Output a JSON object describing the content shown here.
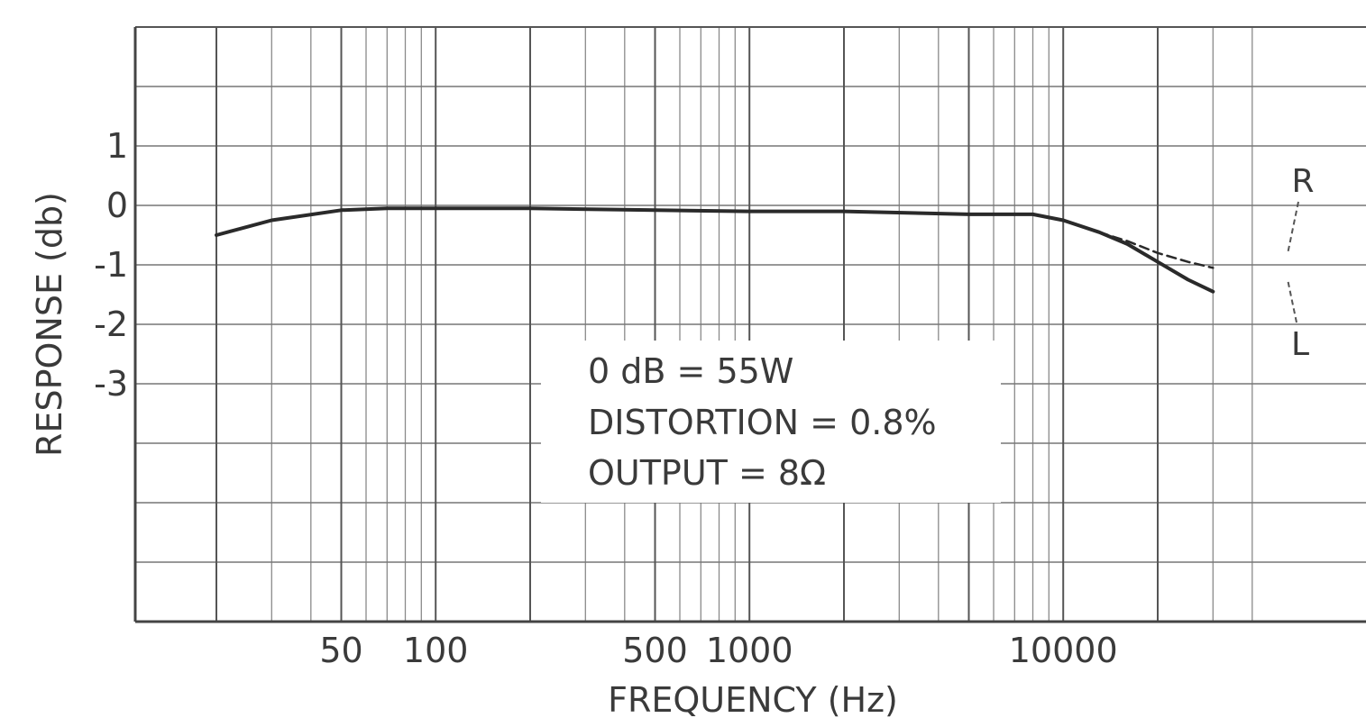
{
  "chart_data": {
    "type": "line",
    "x_scale": "log",
    "xlim": [
      20,
      40000
    ],
    "ylim": [
      -7,
      3
    ],
    "grid": true,
    "ylabel": "RESPONSE (db)",
    "xlabel": "FREQUENCY (Hz)",
    "y_ticks": [
      {
        "value": 1,
        "label": "1"
      },
      {
        "value": 0,
        "label": "0"
      },
      {
        "value": -1,
        "label": "-1"
      },
      {
        "value": -2,
        "label": "-2"
      },
      {
        "value": -3,
        "label": "-3"
      }
    ],
    "x_ticks": [
      {
        "value": 50,
        "label": "50"
      },
      {
        "value": 100,
        "label": "100"
      },
      {
        "value": 500,
        "label": "500"
      },
      {
        "value": 1000,
        "label": "1000"
      },
      {
        "value": 10000,
        "label": "10000"
      }
    ],
    "annotation": {
      "lines": [
        "0 dB = 55W",
        "DISTORTION = 0.8%",
        "OUTPUT = 8Ω"
      ]
    },
    "series": [
      {
        "name": "L",
        "style": "solid",
        "x": [
          20,
          30,
          50,
          70,
          100,
          200,
          500,
          1000,
          2000,
          5000,
          8000,
          10000,
          13000,
          16000,
          20000,
          25000,
          30000
        ],
        "y": [
          -0.5,
          -0.25,
          -0.08,
          -0.05,
          -0.05,
          -0.05,
          -0.08,
          -0.1,
          -0.1,
          -0.15,
          -0.15,
          -0.25,
          -0.45,
          -0.65,
          -0.95,
          -1.25,
          -1.45
        ]
      },
      {
        "name": "R",
        "style": "dashed",
        "x": [
          13000,
          16000,
          20000,
          25000,
          30000
        ],
        "y": [
          -0.45,
          -0.6,
          -0.8,
          -0.95,
          -1.05
        ]
      }
    ]
  }
}
